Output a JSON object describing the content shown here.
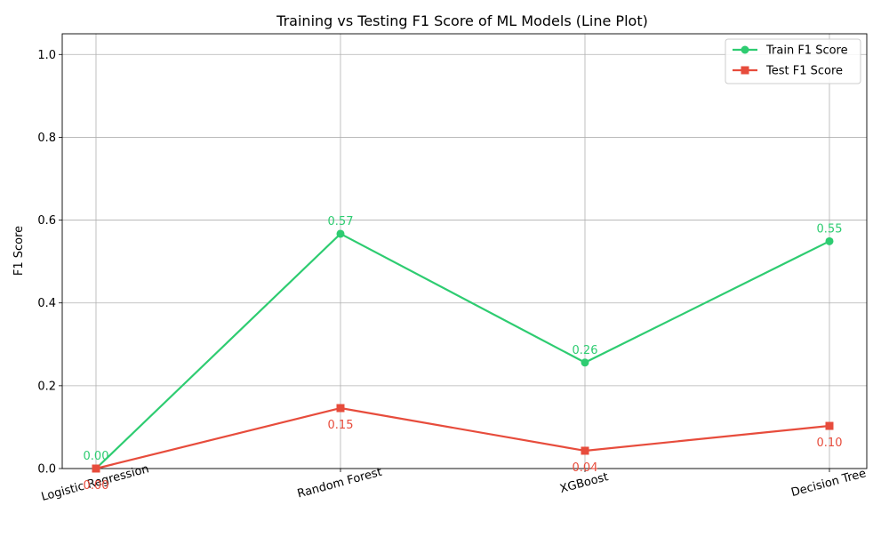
{
  "chart_data": {
    "type": "line",
    "title": "Training vs Testing F1 Score of ML Models (Line Plot)",
    "xlabel": "",
    "ylabel": "F1 Score",
    "categories": [
      "Logistic Regression",
      "Random Forest",
      "XGBoost",
      "Decision Tree"
    ],
    "ylim": [
      0,
      1.05
    ],
    "yticks": [
      "0.0",
      "0.2",
      "0.4",
      "0.6",
      "0.8",
      "1.0"
    ],
    "grid": true,
    "legend_position": "top-right",
    "series": [
      {
        "name": "Train F1 Score",
        "values": [
          0.0,
          0.567,
          0.256,
          0.549
        ],
        "labels": [
          "0.00",
          "0.57",
          "0.26",
          "0.55"
        ],
        "color": "#2ecc71",
        "marker": "circle"
      },
      {
        "name": "Test F1 Score",
        "values": [
          0.0,
          0.146,
          0.043,
          0.103
        ],
        "labels": [
          "0.00",
          "0.15",
          "0.04",
          "0.10"
        ],
        "color": "#e74c3c",
        "marker": "square"
      }
    ]
  }
}
